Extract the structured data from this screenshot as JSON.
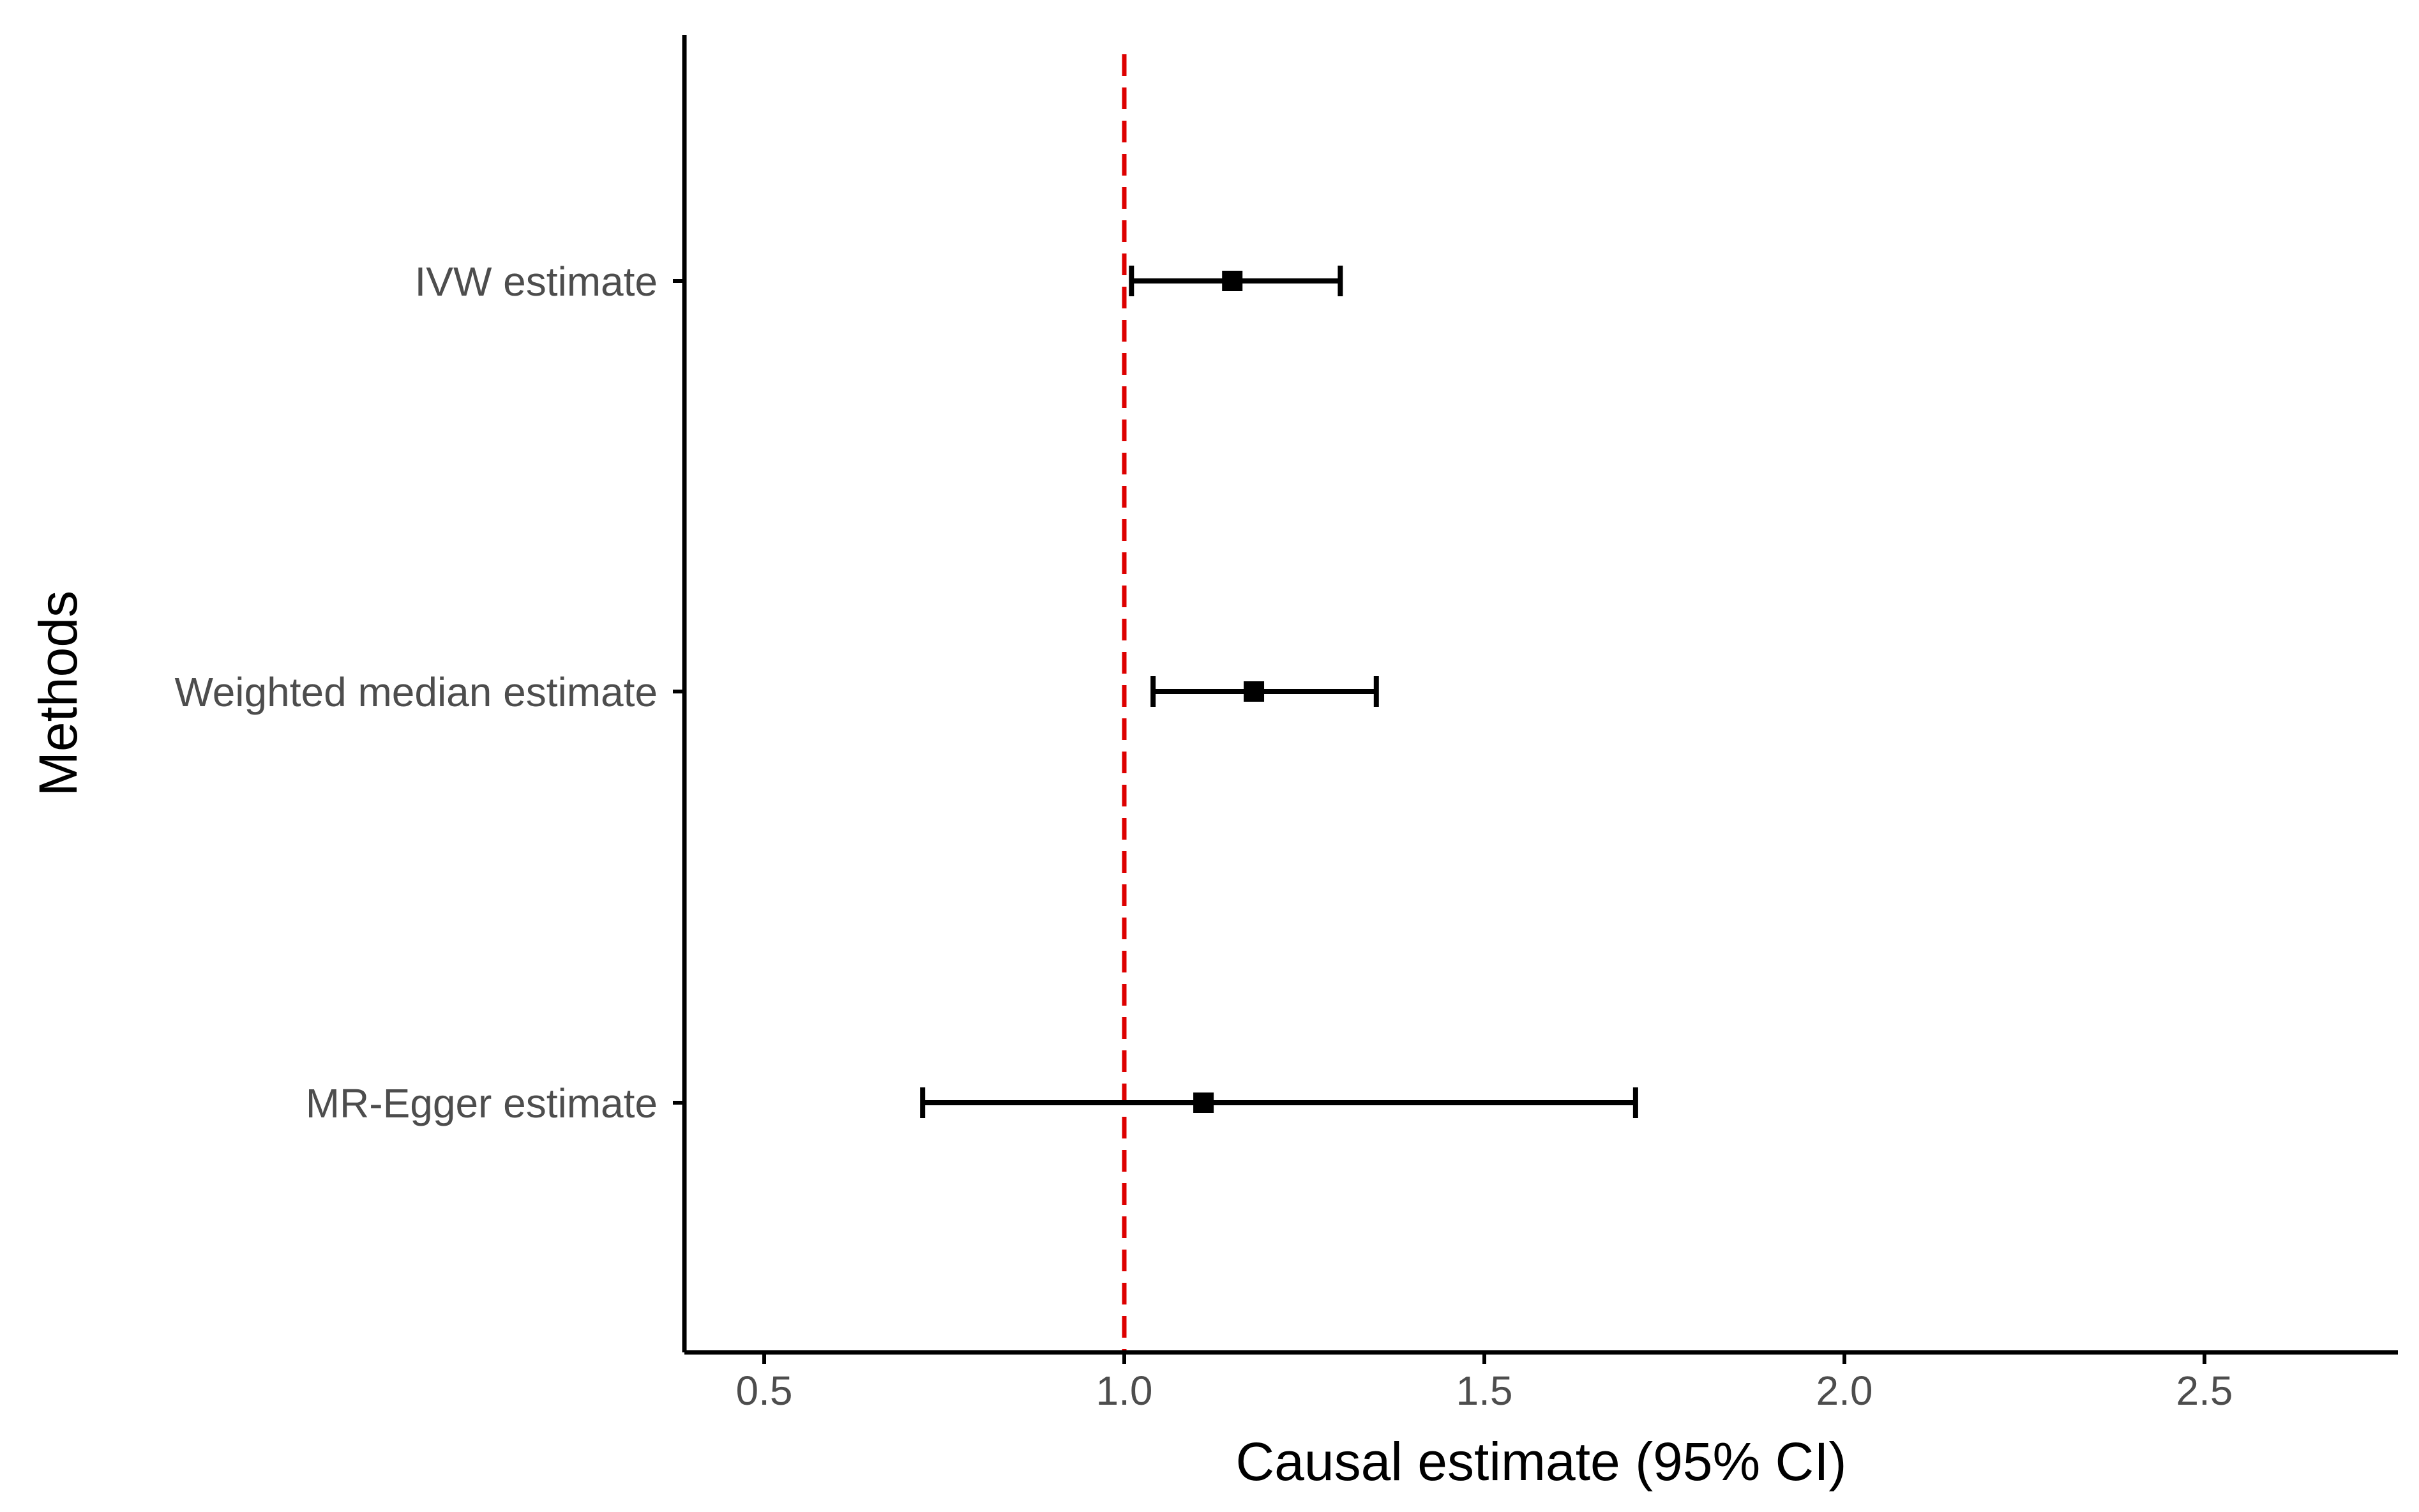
{
  "chart_data": {
    "type": "forest",
    "xlabel": "Causal estimate (95% CI)",
    "ylabel": "Methods",
    "xlim": [
      0.4,
      2.75
    ],
    "xticks": [
      0.5,
      1.0,
      1.5,
      2.0,
      2.5
    ],
    "xtick_labels": [
      "0.5",
      "1.0",
      "1.5",
      "2.0",
      "2.5"
    ],
    "reference_line": {
      "x": 1.0,
      "style": "dashed",
      "color": "#dd0000"
    },
    "grid": false,
    "rows": [
      {
        "label": "IVW estimate",
        "estimate": 1.15,
        "lower": 1.01,
        "upper": 1.3
      },
      {
        "label": "Weighted median estimate",
        "estimate": 1.18,
        "lower": 1.04,
        "upper": 1.35
      },
      {
        "label": "MR-Egger estimate",
        "estimate": 1.11,
        "lower": 0.72,
        "upper": 1.71
      }
    ],
    "colors": {
      "marker": "#000000",
      "axis": "#000000",
      "tick_text": "#4d4d4d"
    }
  }
}
